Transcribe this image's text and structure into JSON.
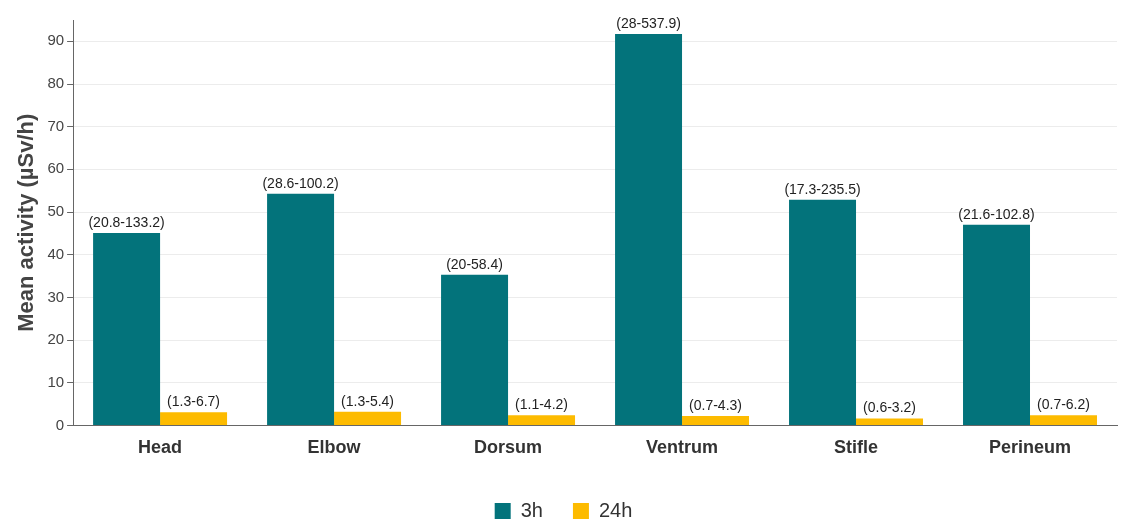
{
  "chart_data": {
    "type": "bar",
    "ylabel": "Mean activity (µSv/h)",
    "categories": [
      "Head",
      "Elbow",
      "Dorsum",
      "Ventrum",
      "Stifle",
      "Perineum"
    ],
    "series": [
      {
        "name": "3h",
        "color": "#03737b",
        "values": [
          45.1,
          54.3,
          35.3,
          91.7,
          52.9,
          47.0
        ],
        "value_labels": [
          "(20.8-133.2)",
          "(28.6-100.2)",
          "(20-58.4)",
          "(28-537.9)",
          "(17.3-235.5)",
          "(21.6-102.8)"
        ]
      },
      {
        "name": "24h",
        "color": "#fdbb00",
        "values": [
          3.1,
          3.2,
          2.4,
          2.2,
          1.6,
          2.4
        ],
        "value_labels": [
          "(1.3-6.7)",
          "(1.3-5.4)",
          "(1.1-4.2)",
          "(0.7-4.3)",
          "(0.6-3.2)",
          "(0.7-6.2)"
        ]
      }
    ],
    "ylim": [
      0,
      95
    ],
    "yticks": [
      0,
      10,
      20,
      30,
      40,
      50,
      60,
      70,
      80,
      90
    ],
    "grid": "y",
    "legend": "bottom"
  }
}
